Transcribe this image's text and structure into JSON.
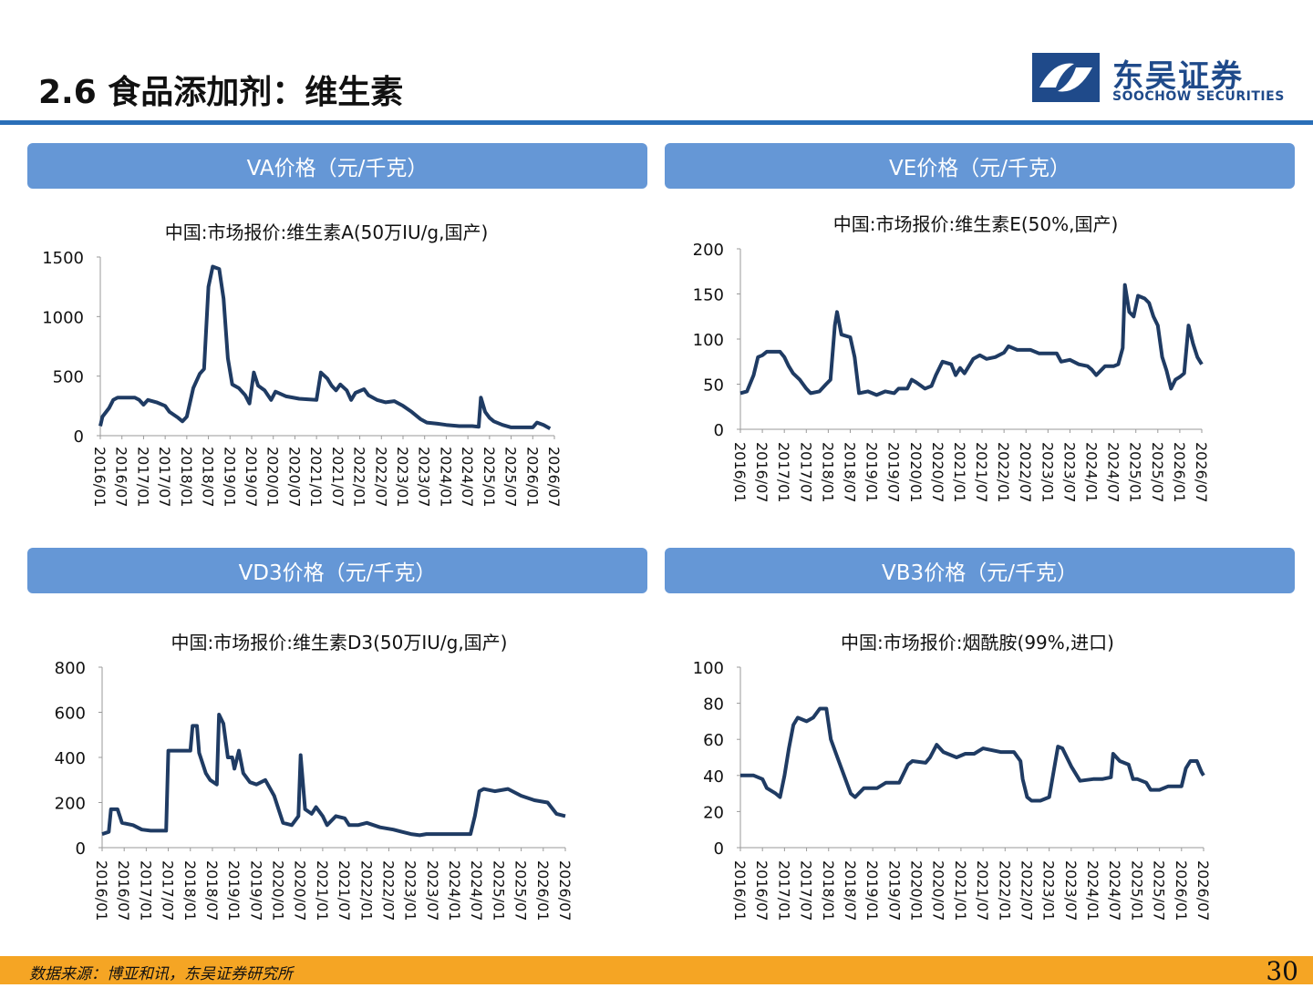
{
  "page": {
    "title": "2.6 食品添加剂：维生素",
    "logo_cn": "东吴证券",
    "logo_en": "SOOCHOW SECURITIES",
    "source": "数据来源：博亚和讯，东吴证券研究所",
    "page_number": "30",
    "banners": [
      "VA价格（元/千克）",
      "VE价格（元/千克）",
      "VD3价格（元/千克）",
      "VB3价格（元/千克）"
    ]
  },
  "colors": {
    "line": "#1f3b63",
    "banner": "#6597d6",
    "rule": "#2a6fb8",
    "footer": "#f5a524",
    "brand": "#1f4a8a"
  },
  "chart_data": [
    {
      "type": "line",
      "title": "中国:市场报价:维生素A(50万IU/g,国产)",
      "ylim": [
        0,
        1500
      ],
      "yticks": [
        0,
        500,
        1000,
        1500
      ],
      "xticks": [
        "2016/01",
        "2016/07",
        "2017/01",
        "2017/07",
        "2018/01",
        "2018/07",
        "2019/01",
        "2019/07",
        "2020/01",
        "2020/07",
        "2021/01",
        "2021/07",
        "2022/01",
        "2022/07",
        "2023/01",
        "2023/07",
        "2024/01",
        "2024/07",
        "2025/01",
        "2025/07",
        "2026/01",
        "2026/07"
      ],
      "xrange": [
        2016.0,
        2026.5
      ],
      "points": [
        [
          2016.0,
          80
        ],
        [
          2016.05,
          160
        ],
        [
          2016.2,
          230
        ],
        [
          2016.3,
          300
        ],
        [
          2016.4,
          320
        ],
        [
          2016.6,
          320
        ],
        [
          2016.8,
          320
        ],
        [
          2016.9,
          300
        ],
        [
          2017.0,
          260
        ],
        [
          2017.1,
          300
        ],
        [
          2017.3,
          280
        ],
        [
          2017.5,
          250
        ],
        [
          2017.6,
          200
        ],
        [
          2017.8,
          150
        ],
        [
          2017.9,
          120
        ],
        [
          2018.0,
          160
        ],
        [
          2018.15,
          400
        ],
        [
          2018.3,
          520
        ],
        [
          2018.4,
          560
        ],
        [
          2018.5,
          1250
        ],
        [
          2018.6,
          1420
        ],
        [
          2018.75,
          1400
        ],
        [
          2018.85,
          1150
        ],
        [
          2018.95,
          650
        ],
        [
          2019.05,
          430
        ],
        [
          2019.2,
          400
        ],
        [
          2019.35,
          340
        ],
        [
          2019.45,
          270
        ],
        [
          2019.55,
          530
        ],
        [
          2019.65,
          420
        ],
        [
          2019.8,
          380
        ],
        [
          2019.95,
          300
        ],
        [
          2020.05,
          370
        ],
        [
          2020.3,
          330
        ],
        [
          2020.6,
          310
        ],
        [
          2021.0,
          300
        ],
        [
          2021.1,
          530
        ],
        [
          2021.25,
          480
        ],
        [
          2021.35,
          420
        ],
        [
          2021.45,
          380
        ],
        [
          2021.55,
          430
        ],
        [
          2021.7,
          380
        ],
        [
          2021.8,
          300
        ],
        [
          2021.9,
          360
        ],
        [
          2022.1,
          390
        ],
        [
          2022.2,
          340
        ],
        [
          2022.4,
          300
        ],
        [
          2022.6,
          280
        ],
        [
          2022.8,
          290
        ],
        [
          2022.9,
          270
        ],
        [
          2023.0,
          250
        ],
        [
          2023.2,
          200
        ],
        [
          2023.4,
          140
        ],
        [
          2023.55,
          110
        ],
        [
          2023.8,
          100
        ],
        [
          2024.0,
          90
        ],
        [
          2024.3,
          80
        ],
        [
          2024.6,
          80
        ],
        [
          2024.75,
          75
        ],
        [
          2024.8,
          320
        ],
        [
          2024.9,
          200
        ],
        [
          2025.0,
          150
        ],
        [
          2025.1,
          120
        ],
        [
          2025.3,
          90
        ],
        [
          2025.5,
          70
        ],
        [
          2025.8,
          70
        ],
        [
          2026.0,
          70
        ],
        [
          2026.1,
          110
        ],
        [
          2026.25,
          90
        ],
        [
          2026.4,
          60
        ]
      ]
    },
    {
      "type": "line",
      "title": "中国:市场报价:维生素E(50%,国产)",
      "ylim": [
        0,
        200
      ],
      "yticks": [
        0,
        50,
        100,
        150,
        200
      ],
      "xticks": [
        "2016/01",
        "2016/07",
        "2017/01",
        "2017/07",
        "2018/01",
        "2018/07",
        "2019/01",
        "2019/07",
        "2020/01",
        "2020/07",
        "2021/01",
        "2021/07",
        "2022/01",
        "2022/07",
        "2023/01",
        "2023/07",
        "2024/01",
        "2024/07",
        "2025/01",
        "2025/07",
        "2026/01",
        "2026/07"
      ],
      "xrange": [
        2016.0,
        2026.5
      ],
      "points": [
        [
          2016.0,
          40
        ],
        [
          2016.15,
          42
        ],
        [
          2016.3,
          60
        ],
        [
          2016.4,
          80
        ],
        [
          2016.5,
          82
        ],
        [
          2016.6,
          86
        ],
        [
          2016.9,
          86
        ],
        [
          2017.0,
          80
        ],
        [
          2017.1,
          70
        ],
        [
          2017.2,
          62
        ],
        [
          2017.35,
          55
        ],
        [
          2017.5,
          45
        ],
        [
          2017.6,
          40
        ],
        [
          2017.8,
          42
        ],
        [
          2017.95,
          50
        ],
        [
          2018.05,
          55
        ],
        [
          2018.15,
          115
        ],
        [
          2018.2,
          130
        ],
        [
          2018.3,
          105
        ],
        [
          2018.5,
          102
        ],
        [
          2018.6,
          80
        ],
        [
          2018.7,
          40
        ],
        [
          2018.9,
          42
        ],
        [
          2019.1,
          38
        ],
        [
          2019.3,
          42
        ],
        [
          2019.5,
          40
        ],
        [
          2019.6,
          45
        ],
        [
          2019.8,
          45
        ],
        [
          2019.9,
          55
        ],
        [
          2020.0,
          52
        ],
        [
          2020.2,
          45
        ],
        [
          2020.35,
          48
        ],
        [
          2020.45,
          60
        ],
        [
          2020.6,
          75
        ],
        [
          2020.8,
          72
        ],
        [
          2020.9,
          60
        ],
        [
          2021.0,
          68
        ],
        [
          2021.1,
          62
        ],
        [
          2021.3,
          78
        ],
        [
          2021.45,
          82
        ],
        [
          2021.6,
          78
        ],
        [
          2021.8,
          80
        ],
        [
          2022.0,
          85
        ],
        [
          2022.1,
          92
        ],
        [
          2022.3,
          88
        ],
        [
          2022.6,
          88
        ],
        [
          2022.8,
          84
        ],
        [
          2023.0,
          84
        ],
        [
          2023.2,
          84
        ],
        [
          2023.3,
          75
        ],
        [
          2023.5,
          77
        ],
        [
          2023.7,
          72
        ],
        [
          2023.9,
          70
        ],
        [
          2024.0,
          66
        ],
        [
          2024.1,
          60
        ],
        [
          2024.3,
          70
        ],
        [
          2024.5,
          70
        ],
        [
          2024.6,
          72
        ],
        [
          2024.7,
          90
        ],
        [
          2024.75,
          160
        ],
        [
          2024.85,
          130
        ],
        [
          2024.95,
          125
        ],
        [
          2025.05,
          148
        ],
        [
          2025.2,
          145
        ],
        [
          2025.3,
          140
        ],
        [
          2025.4,
          125
        ],
        [
          2025.5,
          115
        ],
        [
          2025.6,
          80
        ],
        [
          2025.7,
          65
        ],
        [
          2025.8,
          45
        ],
        [
          2025.9,
          55
        ],
        [
          2026.0,
          58
        ],
        [
          2026.1,
          62
        ],
        [
          2026.2,
          115
        ],
        [
          2026.3,
          95
        ],
        [
          2026.4,
          80
        ],
        [
          2026.5,
          72
        ]
      ]
    },
    {
      "type": "line",
      "title": "中国:市场报价:维生素D3(50万IU/g,国产)",
      "ylim": [
        0,
        800
      ],
      "yticks": [
        0,
        200,
        400,
        600,
        800
      ],
      "xticks": [
        "2016/01",
        "2016/07",
        "2017/01",
        "2017/07",
        "2018/01",
        "2018/07",
        "2019/01",
        "2019/07",
        "2020/01",
        "2020/07",
        "2021/01",
        "2021/07",
        "2022/01",
        "2022/07",
        "2023/01",
        "2023/07",
        "2024/01",
        "2024/07",
        "2025/01",
        "2025/07",
        "2026/01",
        "2026/07"
      ],
      "xrange": [
        2016.0,
        2026.5
      ],
      "points": [
        [
          2016.0,
          60
        ],
        [
          2016.15,
          70
        ],
        [
          2016.2,
          170
        ],
        [
          2016.35,
          170
        ],
        [
          2016.45,
          110
        ],
        [
          2016.7,
          100
        ],
        [
          2016.9,
          80
        ],
        [
          2017.1,
          75
        ],
        [
          2017.3,
          75
        ],
        [
          2017.45,
          75
        ],
        [
          2017.5,
          430
        ],
        [
          2017.8,
          430
        ],
        [
          2018.0,
          430
        ],
        [
          2018.05,
          540
        ],
        [
          2018.15,
          540
        ],
        [
          2018.2,
          420
        ],
        [
          2018.35,
          330
        ],
        [
          2018.45,
          300
        ],
        [
          2018.6,
          280
        ],
        [
          2018.65,
          590
        ],
        [
          2018.75,
          550
        ],
        [
          2018.85,
          400
        ],
        [
          2018.95,
          400
        ],
        [
          2019.0,
          350
        ],
        [
          2019.1,
          430
        ],
        [
          2019.2,
          330
        ],
        [
          2019.35,
          290
        ],
        [
          2019.5,
          280
        ],
        [
          2019.7,
          300
        ],
        [
          2019.9,
          230
        ],
        [
          2020.0,
          170
        ],
        [
          2020.1,
          110
        ],
        [
          2020.3,
          100
        ],
        [
          2020.45,
          140
        ],
        [
          2020.5,
          410
        ],
        [
          2020.6,
          170
        ],
        [
          2020.75,
          150
        ],
        [
          2020.85,
          180
        ],
        [
          2021.0,
          140
        ],
        [
          2021.1,
          100
        ],
        [
          2021.3,
          140
        ],
        [
          2021.5,
          130
        ],
        [
          2021.6,
          100
        ],
        [
          2021.8,
          100
        ],
        [
          2022.0,
          110
        ],
        [
          2022.3,
          90
        ],
        [
          2022.6,
          80
        ],
        [
          2022.8,
          70
        ],
        [
          2023.0,
          60
        ],
        [
          2023.2,
          55
        ],
        [
          2023.35,
          60
        ],
        [
          2023.6,
          60
        ],
        [
          2023.9,
          60
        ],
        [
          2024.2,
          60
        ],
        [
          2024.35,
          60
        ],
        [
          2024.45,
          140
        ],
        [
          2024.55,
          250
        ],
        [
          2024.65,
          260
        ],
        [
          2024.9,
          250
        ],
        [
          2025.2,
          260
        ],
        [
          2025.5,
          230
        ],
        [
          2025.8,
          210
        ],
        [
          2026.1,
          200
        ],
        [
          2026.3,
          150
        ],
        [
          2026.5,
          140
        ]
      ]
    },
    {
      "type": "line",
      "title": "中国:市场报价:烟酰胺(99%,进口)",
      "ylim": [
        0,
        100
      ],
      "yticks": [
        0,
        20,
        40,
        60,
        80,
        100
      ],
      "xticks": [
        "2016/01",
        "2016/07",
        "2017/01",
        "2017/07",
        "2018/01",
        "2018/07",
        "2019/01",
        "2019/07",
        "2020/01",
        "2020/07",
        "2021/01",
        "2021/07",
        "2022/01",
        "2022/07",
        "2023/01",
        "2023/07",
        "2024/01",
        "2024/07",
        "2025/01",
        "2025/07",
        "2026/01",
        "2026/07"
      ],
      "xrange": [
        2016.0,
        2026.5
      ],
      "points": [
        [
          2016.0,
          40
        ],
        [
          2016.3,
          40
        ],
        [
          2016.5,
          38
        ],
        [
          2016.6,
          33
        ],
        [
          2016.8,
          30
        ],
        [
          2016.9,
          28
        ],
        [
          2017.0,
          40
        ],
        [
          2017.1,
          55
        ],
        [
          2017.2,
          68
        ],
        [
          2017.3,
          72
        ],
        [
          2017.5,
          70
        ],
        [
          2017.65,
          72
        ],
        [
          2017.8,
          77
        ],
        [
          2017.95,
          77
        ],
        [
          2018.05,
          60
        ],
        [
          2018.2,
          50
        ],
        [
          2018.35,
          40
        ],
        [
          2018.5,
          30
        ],
        [
          2018.6,
          28
        ],
        [
          2018.8,
          33
        ],
        [
          2019.1,
          33
        ],
        [
          2019.3,
          36
        ],
        [
          2019.6,
          36
        ],
        [
          2019.8,
          46
        ],
        [
          2019.9,
          48
        ],
        [
          2020.2,
          47
        ],
        [
          2020.3,
          50
        ],
        [
          2020.45,
          57
        ],
        [
          2020.6,
          53
        ],
        [
          2020.9,
          50
        ],
        [
          2021.1,
          52
        ],
        [
          2021.3,
          52
        ],
        [
          2021.5,
          55
        ],
        [
          2021.9,
          53
        ],
        [
          2022.2,
          53
        ],
        [
          2022.35,
          48
        ],
        [
          2022.4,
          38
        ],
        [
          2022.5,
          28
        ],
        [
          2022.6,
          26
        ],
        [
          2022.8,
          26
        ],
        [
          2023.0,
          28
        ],
        [
          2023.1,
          42
        ],
        [
          2023.2,
          56
        ],
        [
          2023.3,
          55
        ],
        [
          2023.5,
          45
        ],
        [
          2023.7,
          37
        ],
        [
          2024.0,
          38
        ],
        [
          2024.2,
          38
        ],
        [
          2024.4,
          39
        ],
        [
          2024.45,
          52
        ],
        [
          2024.6,
          48
        ],
        [
          2024.8,
          46
        ],
        [
          2024.9,
          38
        ],
        [
          2025.0,
          38
        ],
        [
          2025.2,
          36
        ],
        [
          2025.3,
          32
        ],
        [
          2025.5,
          32
        ],
        [
          2025.7,
          34
        ],
        [
          2026.0,
          34
        ],
        [
          2026.1,
          44
        ],
        [
          2026.2,
          48
        ],
        [
          2026.35,
          48
        ],
        [
          2026.45,
          42
        ],
        [
          2026.5,
          40
        ]
      ]
    }
  ]
}
